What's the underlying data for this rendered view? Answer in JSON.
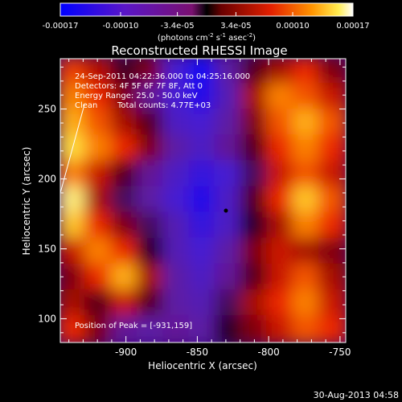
{
  "chart_data": {
    "type": "heatmap",
    "title": "Reconstructed RHESSI Image",
    "xlabel": "Heliocentric X (arcsec)",
    "ylabel": "Heliocentric Y (arcsec)",
    "x_ticks": [
      "-900",
      "-850",
      "-800",
      "-750"
    ],
    "y_ticks": [
      "100",
      "150",
      "200",
      "250"
    ],
    "x_tick_values": [
      -900,
      -850,
      -800,
      -750
    ],
    "y_tick_values": [
      100,
      150,
      200,
      250
    ],
    "xlim": [
      -946,
      -746
    ],
    "ylim": [
      83,
      286
    ],
    "colorbar": {
      "ticks": [
        "-0.00017",
        "-0.00010",
        "-3.4e-05",
        "3.4e-05",
        "0.00010",
        "0.00017"
      ],
      "tick_values": [
        -0.00017,
        -0.0001,
        -3.4e-05,
        3.4e-05,
        0.0001,
        0.00017
      ],
      "range": [
        -0.00017,
        0.00017
      ],
      "units_line1": "(photons cm",
      "units_sup1": "-2",
      "units_line2": " s",
      "units_sup2": "-1",
      "units_line3": " asec",
      "units_sup3": "-2",
      "units_line4": ")"
    },
    "annotations": {
      "time": "24-Sep-2011 04:22:36.000 to 04:25:16.000",
      "detectors": "Detectors: 4F 5F 6F 7F 8F, Att 0",
      "energy": "Energy Range: 25.0 - 50.0 keV",
      "clean_label": "Clean",
      "total_counts": "Total counts: 4.77E+03",
      "peak": "Position of Peak = [-931,159]"
    },
    "peak": {
      "x": -931,
      "y": 159
    },
    "image_grid": {
      "cols": 11,
      "rows": 11,
      "values": [
        [
          0.55,
          0.35,
          0.05,
          0.2,
          -0.6,
          -0.9,
          -0.3,
          0.1,
          0.3,
          0.5,
          0.2
        ],
        [
          0.7,
          0.5,
          0.2,
          -0.2,
          -0.6,
          -0.8,
          -0.4,
          0.3,
          0.7,
          0.6,
          0.4
        ],
        [
          0.8,
          0.6,
          0.3,
          0.1,
          -0.5,
          -0.6,
          -0.3,
          0.2,
          0.6,
          0.8,
          0.6
        ],
        [
          0.9,
          0.7,
          0.5,
          0.2,
          -0.3,
          -0.5,
          -0.2,
          0.1,
          0.5,
          0.7,
          0.5
        ],
        [
          0.7,
          0.4,
          0.1,
          -0.2,
          -0.5,
          -0.7,
          -0.6,
          -0.1,
          0.4,
          0.6,
          0.4
        ],
        [
          0.95,
          0.3,
          -0.1,
          -0.3,
          -0.6,
          -0.8,
          -0.5,
          0.1,
          0.5,
          0.85,
          0.6
        ],
        [
          0.85,
          0.5,
          0.2,
          -0.1,
          -0.4,
          -0.7,
          -0.5,
          0.0,
          0.3,
          0.7,
          0.5
        ],
        [
          0.4,
          0.7,
          0.5,
          0.0,
          -0.4,
          -0.6,
          -0.3,
          0.2,
          0.4,
          0.3,
          0.2
        ],
        [
          0.2,
          0.5,
          0.8,
          0.3,
          -0.3,
          -0.5,
          -0.2,
          0.1,
          0.4,
          0.6,
          0.3
        ],
        [
          0.3,
          0.1,
          0.4,
          0.1,
          -0.3,
          -0.4,
          -0.1,
          0.3,
          0.5,
          0.7,
          0.4
        ],
        [
          0.5,
          0.2,
          -0.2,
          -0.3,
          -0.2,
          -0.3,
          0.0,
          0.2,
          0.4,
          0.6,
          0.5
        ]
      ]
    }
  },
  "footer": {
    "date": "30-Aug-2013 04:58"
  }
}
